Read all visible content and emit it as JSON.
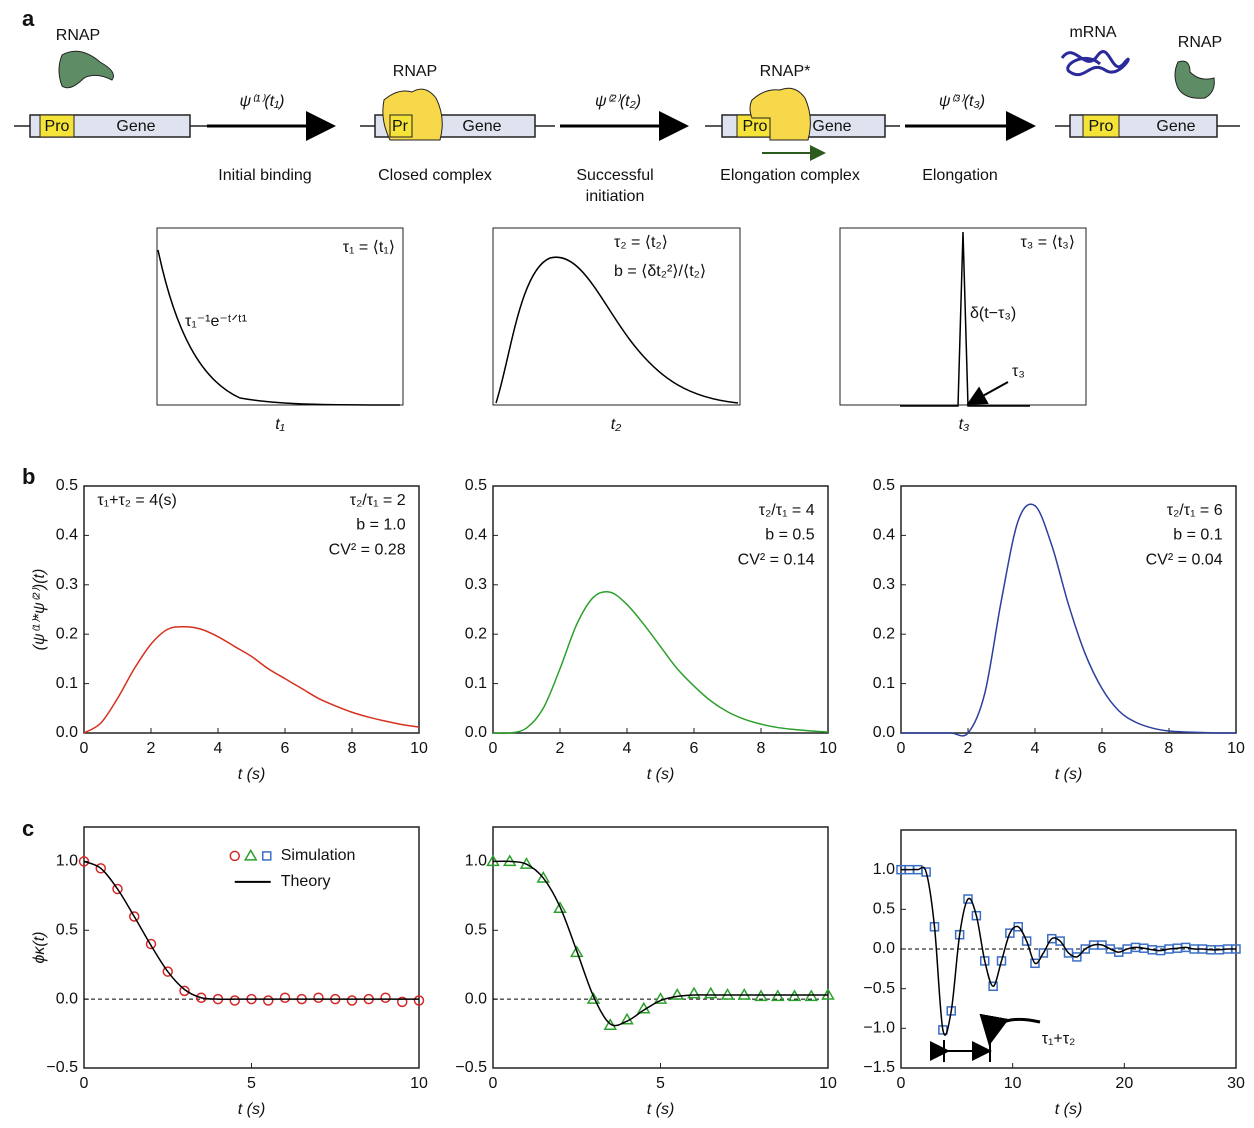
{
  "panel_labels": [
    "a",
    "b",
    "c"
  ],
  "diagram": {
    "rnap_free": "RNAP",
    "rnap_closed": "RNAP",
    "rnap_elong": "RNAP*",
    "rnap_released": "RNAP",
    "mrna": "mRNA",
    "promoters": [
      "Pro",
      "Pr",
      "Pro",
      "Pro"
    ],
    "genes": [
      "Gene",
      "Gene",
      "Gene",
      "Gene"
    ],
    "transitions": [
      {
        "rate": "ψ⁽¹⁾(t₁)",
        "label": [
          "Initial binding"
        ]
      },
      {
        "rate": "ψ⁽²⁾(t₂)",
        "label": [
          "Successful",
          "initiation"
        ]
      },
      {
        "rate": "ψ⁽³⁾(t₃)",
        "label": [
          "Elongation"
        ]
      }
    ],
    "state_labels": [
      "Closed complex",
      "Elongation complex"
    ],
    "distributions": [
      {
        "annotations": [
          "τ₁ = ⟨t₁⟩",
          "τ₁⁻¹e⁻ᵗᐟᵗ¹"
        ],
        "xlabel": "t₁"
      },
      {
        "annotations": [
          "τ₂ = ⟨t₂⟩",
          "b = ⟨δt₂²⟩/⟨t₂⟩"
        ],
        "xlabel": "t₂"
      },
      {
        "annotations": [
          "τ₃ = ⟨t₃⟩",
          "δ(t−τ₃)",
          "τ₃"
        ],
        "xlabel": "t₃"
      }
    ]
  },
  "chart_data": [
    {
      "type": "line",
      "x": [
        0,
        0.5,
        1,
        1.5,
        2,
        2.5,
        3,
        3.5,
        4,
        4.5,
        5,
        5.5,
        6,
        6.5,
        7,
        7.5,
        8,
        8.5,
        9,
        9.5,
        10
      ],
      "series": [
        {
          "color": "#d7301f",
          "values": [
            0,
            0.02,
            0.07,
            0.13,
            0.18,
            0.21,
            0.215,
            0.21,
            0.195,
            0.175,
            0.155,
            0.13,
            0.11,
            0.09,
            0.07,
            0.055,
            0.042,
            0.032,
            0.024,
            0.017,
            0.012
          ]
        }
      ],
      "xlim": [
        0,
        10
      ],
      "xticks": [
        0,
        2,
        4,
        6,
        8,
        10
      ],
      "ylim": [
        0,
        0.5
      ],
      "yticks": [
        {
          "value": 0,
          "label": "0.0"
        },
        0.1,
        0.2,
        0.3,
        0.4,
        0.5
      ],
      "xlabel": "t (s)",
      "ylabel": "(ψ⁽¹⁾*ψ⁽²⁾)(t)",
      "annotations": [
        "τ₁+τ₂ = 4(s)",
        "τ₂/τ₁ = 2",
        "b = 1.0",
        "CV² = 0.28"
      ]
    },
    {
      "type": "line",
      "x": [
        0,
        0.5,
        1,
        1.5,
        2,
        2.5,
        3,
        3.5,
        4,
        4.5,
        5,
        5.5,
        6,
        6.5,
        7,
        7.5,
        8,
        8.5,
        9,
        9.5,
        10
      ],
      "series": [
        {
          "color": "#2ca02c",
          "values": [
            0,
            0,
            0.01,
            0.05,
            0.13,
            0.22,
            0.275,
            0.285,
            0.26,
            0.22,
            0.175,
            0.13,
            0.095,
            0.065,
            0.043,
            0.028,
            0.018,
            0.011,
            0.007,
            0.004,
            0.002
          ]
        }
      ],
      "xlim": [
        0,
        10
      ],
      "xticks": [
        0,
        2,
        4,
        6,
        8,
        10
      ],
      "ylim": [
        0,
        0.5
      ],
      "yticks": [
        {
          "value": 0,
          "label": "0.0"
        },
        0.1,
        0.2,
        0.3,
        0.4,
        0.5
      ],
      "xlabel": "t (s)",
      "annotations": [
        "τ₂/τ₁ = 4",
        "b = 0.5",
        "CV² = 0.14"
      ]
    },
    {
      "type": "line",
      "x": [
        0,
        0.5,
        1,
        1.5,
        2,
        2.5,
        3,
        3.5,
        4,
        4.5,
        5,
        5.5,
        6,
        6.5,
        7,
        7.5,
        8,
        8.5,
        9,
        9.5,
        10
      ],
      "series": [
        {
          "color": "#2b3f9e",
          "values": [
            0,
            0,
            0,
            0,
            0,
            0.08,
            0.27,
            0.43,
            0.46,
            0.38,
            0.26,
            0.16,
            0.09,
            0.045,
            0.022,
            0.01,
            0.004,
            0.002,
            0.001,
            0,
            0
          ]
        }
      ],
      "xlim": [
        0,
        10
      ],
      "xticks": [
        0,
        2,
        4,
        6,
        8,
        10
      ],
      "ylim": [
        0,
        0.5
      ],
      "yticks": [
        {
          "value": 0,
          "label": "0.0"
        },
        0.1,
        0.2,
        0.3,
        0.4,
        0.5
      ],
      "xlabel": "t (s)",
      "annotations": [
        "τ₂/τ₁ = 6",
        "b = 0.1",
        "CV² = 0.04"
      ]
    },
    {
      "type": "line",
      "x": [
        0,
        0.5,
        1,
        1.5,
        2,
        2.5,
        3,
        3.5,
        4,
        4.5,
        5,
        5.5,
        6,
        6.5,
        7,
        7.5,
        8,
        8.5,
        9,
        9.5,
        10
      ],
      "series": [
        {
          "name": "Simulation",
          "color": "#d62728",
          "marker": "circle",
          "values": [
            1.0,
            0.95,
            0.8,
            0.6,
            0.4,
            0.2,
            0.06,
            0.01,
            0,
            -0.01,
            0,
            -0.01,
            0.01,
            0,
            0.01,
            0,
            -0.01,
            0,
            0.01,
            -0.02,
            -0.01
          ]
        },
        {
          "name": "Theory",
          "color": "#000000",
          "values": [
            1.0,
            0.95,
            0.8,
            0.6,
            0.39,
            0.2,
            0.07,
            0.01,
            0,
            0,
            0,
            0,
            0,
            0,
            0,
            0,
            0,
            0,
            0,
            0,
            0
          ]
        }
      ],
      "xlim": [
        0,
        10
      ],
      "xticks": [
        0,
        5,
        10
      ],
      "ylim": [
        -0.5,
        1.25
      ],
      "yticks": [
        {
          "value": -0.5,
          "label": "−0.5"
        },
        {
          "value": 0,
          "label": "0.0"
        },
        0.5,
        {
          "value": 1,
          "label": "1.0"
        }
      ],
      "xlabel": "t (s)",
      "ylabel": "ϕκ(t)",
      "zero_line": true,
      "legend": "upper right"
    },
    {
      "type": "line",
      "x": [
        0,
        0.5,
        1,
        1.5,
        2,
        2.5,
        3,
        3.5,
        4,
        4.5,
        5,
        5.5,
        6,
        6.5,
        7,
        7.5,
        8,
        8.5,
        9,
        9.5,
        10
      ],
      "series": [
        {
          "color": "#2ca02c",
          "marker": "triangle",
          "values": [
            1,
            1,
            0.98,
            0.88,
            0.66,
            0.34,
            0,
            -0.19,
            -0.15,
            -0.07,
            0,
            0.03,
            0.04,
            0.04,
            0.03,
            0.03,
            0.02,
            0.02,
            0.02,
            0.02,
            0.03
          ]
        },
        {
          "color": "#000000",
          "values": [
            1,
            1,
            0.98,
            0.88,
            0.67,
            0.35,
            0.02,
            -0.18,
            -0.16,
            -0.08,
            -0.01,
            0.02,
            0.03,
            0.03,
            0.03,
            0.03,
            0.03,
            0.03,
            0.03,
            0.03,
            0.03
          ]
        }
      ],
      "xlim": [
        0,
        10
      ],
      "xticks": [
        0,
        5,
        10
      ],
      "ylim": [
        -0.5,
        1.25
      ],
      "yticks": [
        {
          "value": -0.5,
          "label": "−0.5"
        },
        {
          "value": 0,
          "label": "0.0"
        },
        0.5,
        {
          "value": 1,
          "label": "1.0"
        }
      ],
      "xlabel": "t (s)",
      "zero_line": true
    },
    {
      "type": "line",
      "x": [
        0,
        0.75,
        1.5,
        2.25,
        3,
        3.75,
        4.5,
        5.25,
        6,
        6.75,
        7.5,
        8.25,
        9,
        9.75,
        10.5,
        11.25,
        12,
        12.75,
        13.5,
        14.25,
        15,
        15.75,
        16.5,
        17.25,
        18,
        18.75,
        19.5,
        20.25,
        21,
        21.75,
        22.5,
        23.25,
        24,
        24.75,
        25.5,
        26.25,
        27,
        27.75,
        28.5,
        29.25,
        30
      ],
      "series": [
        {
          "color": "#3a6fc4",
          "marker": "square",
          "values": [
            1,
            1,
            1,
            0.97,
            0.28,
            -1.02,
            -0.78,
            0.18,
            0.63,
            0.42,
            -0.15,
            -0.47,
            -0.15,
            0.2,
            0.28,
            0.1,
            -0.18,
            -0.05,
            0.13,
            0.1,
            -0.05,
            -0.1,
            0,
            0.05,
            0.05,
            0,
            -0.04,
            0,
            0.02,
            0.01,
            -0.01,
            -0.02,
            0,
            0.01,
            0.02,
            0,
            0,
            -0.01,
            -0.01,
            0,
            0
          ]
        },
        {
          "color": "#000000",
          "values": [
            1,
            1,
            1,
            0.97,
            0.28,
            -1.02,
            -0.78,
            0.18,
            0.63,
            0.42,
            -0.15,
            -0.47,
            -0.15,
            0.2,
            0.28,
            0.1,
            -0.18,
            -0.05,
            0.13,
            0.1,
            -0.05,
            -0.1,
            0,
            0.05,
            0.05,
            0,
            -0.04,
            0,
            0.02,
            0.01,
            -0.01,
            -0.02,
            0,
            0.01,
            0.02,
            0,
            0,
            -0.01,
            -0.01,
            0,
            0
          ]
        }
      ],
      "xlim": [
        0,
        30
      ],
      "xticks": [
        0,
        10,
        20,
        30
      ],
      "ylim": [
        -1.5,
        1.5
      ],
      "yticks": [
        {
          "value": -1.5,
          "label": "−1.5"
        },
        {
          "value": -1,
          "label": "−1.0"
        },
        {
          "value": -0.5,
          "label": "−0.5"
        },
        {
          "value": 0,
          "label": "0.0"
        },
        0.5,
        {
          "value": 1,
          "label": "1.0"
        }
      ],
      "xlabel": "t (s)",
      "zero_line": true,
      "annotations": [
        "τ₁+τ₂"
      ]
    }
  ]
}
